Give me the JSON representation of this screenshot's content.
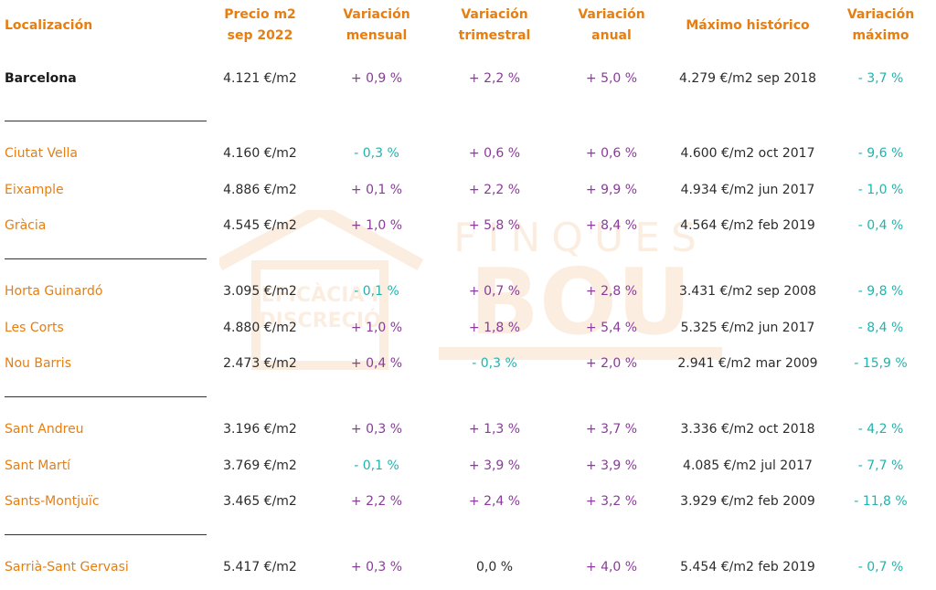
{
  "header": {
    "location": "Localización",
    "price": [
      "Precio m2",
      "sep 2022"
    ],
    "monthly": [
      "Variación",
      "mensual"
    ],
    "quarterly": [
      "Variación",
      "trimestral"
    ],
    "annual": [
      "Variación",
      "anual"
    ],
    "max": "Máximo histórico",
    "varmax": [
      "Variación",
      "máximo"
    ]
  },
  "watermark": {
    "brand_top": "FINQUES",
    "brand_main": "BOU",
    "slogan_1": "EFICÀCIA I",
    "slogan_2": "DISCRECIÓ"
  },
  "colors": {
    "accent": "#e67e12",
    "positive": "#8a3b9a",
    "negative": "#1fb5ad"
  },
  "rows": [
    {
      "name": "Barcelona",
      "price": "4.121 €/m2",
      "m": "+ 0,9 %",
      "q": "+ 2,2 %",
      "a": "+ 5,0 %",
      "max": "4.279 €/m2 sep 2018",
      "vmax": "- 3,7 %"
    },
    {
      "name": "Ciutat Vella",
      "price": "4.160 €/m2",
      "m": "- 0,3 %",
      "q": "+ 0,6 %",
      "a": "+ 0,6 %",
      "max": "4.600 €/m2 oct 2017",
      "vmax": "- 9,6 %"
    },
    {
      "name": "Eixample",
      "price": "4.886 €/m2",
      "m": "+ 0,1 %",
      "q": "+ 2,2 %",
      "a": "+ 9,9 %",
      "max": "4.934 €/m2 jun 2017",
      "vmax": "- 1,0 %"
    },
    {
      "name": "Gràcia",
      "price": "4.545 €/m2",
      "m": "+ 1,0 %",
      "q": "+ 5,8 %",
      "a": "+ 8,4 %",
      "max": "4.564 €/m2 feb 2019",
      "vmax": "- 0,4 %"
    },
    {
      "name": "Horta Guinardó",
      "price": "3.095 €/m2",
      "m": "- 0,1 %",
      "q": "+ 0,7 %",
      "a": "+ 2,8 %",
      "max": "3.431 €/m2 sep 2008",
      "vmax": "- 9,8 %"
    },
    {
      "name": "Les Corts",
      "price": "4.880 €/m2",
      "m": "+ 1,0 %",
      "q": "+ 1,8 %",
      "a": "+ 5,4 %",
      "max": "5.325 €/m2 jun 2017",
      "vmax": "- 8,4 %"
    },
    {
      "name": "Nou Barris",
      "price": "2.473 €/m2",
      "m": "+ 0,4 %",
      "q": "- 0,3 %",
      "a": "+ 2,0 %",
      "max": "2.941 €/m2 mar 2009",
      "vmax": "- 15,9 %"
    },
    {
      "name": "Sant Andreu",
      "price": "3.196 €/m2",
      "m": "+ 0,3 %",
      "q": "+ 1,3 %",
      "a": "+ 3,7 %",
      "max": "3.336 €/m2 oct 2018",
      "vmax": "- 4,2 %"
    },
    {
      "name": "Sant Martí",
      "price": "3.769 €/m2",
      "m": "- 0,1 %",
      "q": "+ 3,9 %",
      "a": "+ 3,9 %",
      "max": "4.085 €/m2 jul 2017",
      "vmax": "- 7,7 %"
    },
    {
      "name": "Sants-Montjuïc",
      "price": "3.465 €/m2",
      "m": "+ 2,2 %",
      "q": "+ 2,4 %",
      "a": "+ 3,2 %",
      "max": "3.929 €/m2 feb 2009",
      "vmax": "- 11,8 %"
    },
    {
      "name": "Sarrià-Sant Gervasi",
      "price": "5.417 €/m2",
      "m": "+ 0,3 %",
      "q": "0,0 %",
      "a": "+ 4,0 %",
      "max": "5.454 €/m2 feb 2019",
      "vmax": "- 0,7 %"
    }
  ]
}
